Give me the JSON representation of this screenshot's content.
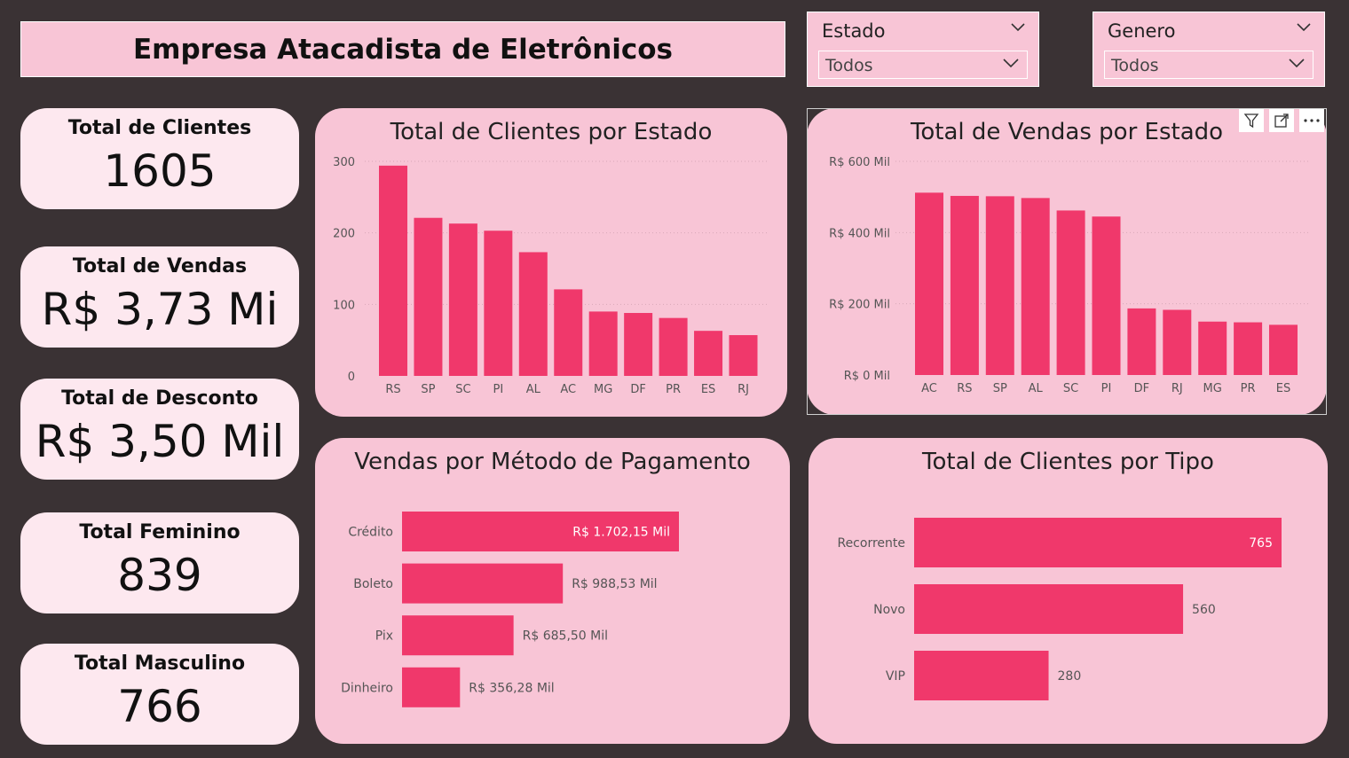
{
  "header": {
    "title": "Empresa Atacadista de Eletrônicos"
  },
  "slicers": [
    {
      "label": "Estado",
      "value": "Todos"
    },
    {
      "label": "Genero",
      "value": "Todos"
    }
  ],
  "kpis": [
    {
      "label": "Total de Clientes",
      "value": "1605"
    },
    {
      "label": "Total de Vendas",
      "value": "R$ 3,73 Mi"
    },
    {
      "label": "Total de Desconto",
      "value": "R$ 3,50 Mil"
    },
    {
      "label": "Total Feminino",
      "value": "839"
    },
    {
      "label": "Total Masculino",
      "value": "766"
    }
  ],
  "colors": {
    "bar": "#f0386b",
    "card": "#f8c5d6",
    "kpi_card": "#fde8ef",
    "background": "#3a3234"
  },
  "toolbar_icons": [
    "filter-icon",
    "focus-mode-icon",
    "more-options-icon"
  ],
  "chart_data": [
    {
      "type": "bar",
      "title": "Total de Clientes por Estado",
      "categories": [
        "RS",
        "SP",
        "SC",
        "PI",
        "AL",
        "AC",
        "MG",
        "DF",
        "PR",
        "ES",
        "RJ"
      ],
      "values": [
        294,
        221,
        213,
        203,
        173,
        121,
        90,
        88,
        81,
        63,
        57
      ],
      "ylim": [
        0,
        300
      ],
      "yticks": [
        0,
        100,
        200,
        300
      ],
      "ytick_labels": [
        "0",
        "100",
        "200",
        "300"
      ],
      "grid": true
    },
    {
      "type": "bar",
      "title": "Total de Vendas por Estado",
      "categories": [
        "AC",
        "RS",
        "SP",
        "AL",
        "SC",
        "PI",
        "DF",
        "RJ",
        "MG",
        "PR",
        "ES"
      ],
      "values": [
        512000,
        503000,
        502000,
        497000,
        462000,
        445000,
        187000,
        183000,
        150000,
        148000,
        141000
      ],
      "ylim": [
        0,
        600000
      ],
      "yticks": [
        0,
        200000,
        400000,
        600000
      ],
      "ytick_labels": [
        "R$ 0 Mil",
        "R$ 200 Mil",
        "R$ 400 Mil",
        "R$ 600 Mil"
      ],
      "grid": true
    },
    {
      "type": "bar",
      "orientation": "horizontal",
      "title": "Vendas por Método de Pagamento",
      "categories": [
        "Crédito",
        "Boleto",
        "Pix",
        "Dinheiro"
      ],
      "values": [
        1702.15,
        988.53,
        685.5,
        356.28
      ],
      "data_labels": [
        "R$ 1.702,15 Mil",
        "R$ 988,53 Mil",
        "R$ 685,50 Mil",
        "R$ 356,28 Mil"
      ]
    },
    {
      "type": "bar",
      "orientation": "horizontal",
      "title": "Total de Clientes por Tipo",
      "categories": [
        "Recorrente",
        "Novo",
        "VIP"
      ],
      "values": [
        765,
        560,
        280
      ],
      "data_labels": [
        "765",
        "560",
        "280"
      ]
    }
  ]
}
